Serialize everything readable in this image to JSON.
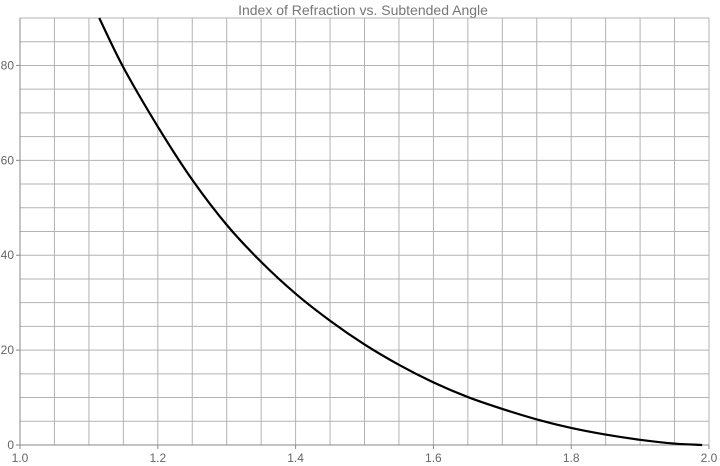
{
  "chart_data": {
    "type": "line",
    "title": "Index of Refraction vs. Subtended Angle",
    "xlabel": "",
    "ylabel": "",
    "xlim": [
      1.0,
      2.0
    ],
    "ylim": [
      0,
      90
    ],
    "grid": true,
    "x_major_ticks": [
      1.0,
      1.2,
      1.4,
      1.6,
      1.8,
      2.0
    ],
    "x_tick_labels": [
      "1.0",
      "1.2",
      "1.4",
      "1.6",
      "1.8",
      "2.0"
    ],
    "y_major_ticks": [
      0,
      20,
      40,
      60,
      80
    ],
    "y_tick_labels": [
      "0",
      "20",
      "40",
      "60",
      "80"
    ],
    "x_grid_step": 0.05,
    "y_grid_step": 5,
    "series": [
      {
        "color": "#000000",
        "x": [
          1.115,
          1.15,
          1.2,
          1.25,
          1.3,
          1.35,
          1.4,
          1.45,
          1.5,
          1.55,
          1.6,
          1.65,
          1.7,
          1.75,
          1.8,
          1.85,
          1.9,
          1.95,
          1.99
        ],
        "y": [
          90,
          79.6,
          67.1,
          55.9,
          46.4,
          38.6,
          31.9,
          26.2,
          21.2,
          16.9,
          13.2,
          10.1,
          7.6,
          5.4,
          3.6,
          2.2,
          1.1,
          0.3,
          0
        ]
      }
    ]
  }
}
